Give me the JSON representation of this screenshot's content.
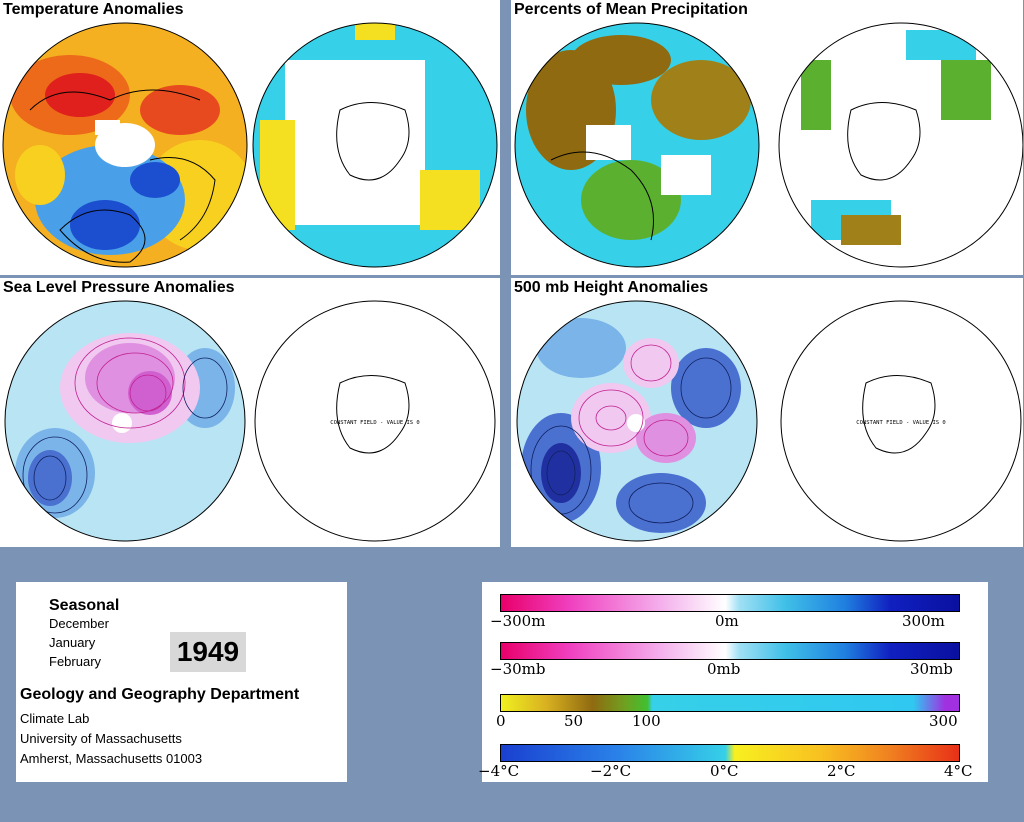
{
  "panels": [
    {
      "title": "Temperature Anomalies",
      "right_note": ""
    },
    {
      "title": "Percents of Mean Precipitation",
      "right_note": ""
    },
    {
      "title": "Sea Level Pressure Anomalies",
      "right_note": "CONSTANT FIELD - VALUE IS 0"
    },
    {
      "title": "500 mb Height Anomalies",
      "right_note": "CONSTANT FIELD - VALUE IS 0"
    }
  ],
  "info": {
    "season": "Seasonal",
    "months": [
      "December",
      "January",
      "February"
    ],
    "year": "1949",
    "dept": "Geology and Geography Department",
    "lines": [
      "Climate Lab",
      "University of Massachusetts",
      "Amherst, Massachusetts 01003"
    ]
  },
  "legend": {
    "height": [
      "−300m",
      "0m",
      "300m"
    ],
    "pressure": [
      "−30mb",
      "0mb",
      "30mb"
    ],
    "precip": [
      "0",
      "50",
      "100",
      "300"
    ],
    "temp": [
      "−4°C",
      "−2°C",
      "0°C",
      "2°C",
      "4°C"
    ]
  },
  "colors": {
    "background": "#7b93b4",
    "warm": "#e8281e",
    "cool": "#2a6fd8",
    "neutral": "#36d0e8",
    "dry": "#8f6a10",
    "high": "#e040c0",
    "low": "#3050c8"
  }
}
